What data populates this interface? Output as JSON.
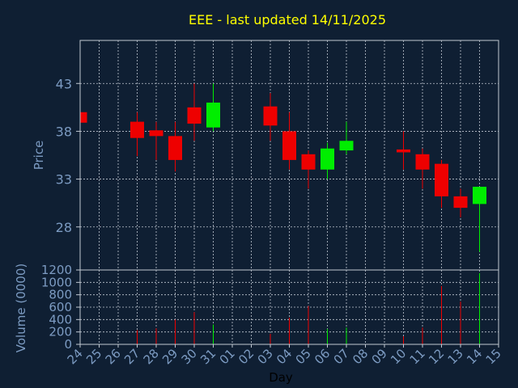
{
  "chart_data": {
    "type": "candlestick",
    "title": "EEE - last updated 14/11/2025",
    "price_panel": {
      "ylabel": "Price",
      "ylim": [
        23.5,
        47.5
      ],
      "yticks": [
        28,
        33,
        38,
        43
      ]
    },
    "volume_panel": {
      "ylabel": "Volume (0000)",
      "ylim": [
        0,
        1200
      ],
      "yticks": [
        0,
        200,
        400,
        600,
        800,
        1000,
        1200
      ]
    },
    "xlabel": "Day",
    "x_ticks": [
      "24",
      "25",
      "26",
      "27",
      "28",
      "29",
      "30",
      "31",
      "01",
      "02",
      "03",
      "04",
      "05",
      "06",
      "07",
      "08",
      "09",
      "10",
      "11",
      "12",
      "13",
      "14",
      "15"
    ],
    "candles": [
      {
        "day": "24",
        "open": 40.0,
        "high": 40.0,
        "low": 38.9,
        "close": 38.9,
        "volume": 0
      },
      {
        "day": "27",
        "open": 39.0,
        "high": 40.0,
        "low": 35.4,
        "close": 37.3,
        "volume": 230
      },
      {
        "day": "28",
        "open": 38.1,
        "high": 39.0,
        "low": 35.0,
        "close": 37.5,
        "volume": 260
      },
      {
        "day": "29",
        "open": 37.5,
        "high": 39.0,
        "low": 33.8,
        "close": 35.0,
        "volume": 400
      },
      {
        "day": "30",
        "open": 40.5,
        "high": 43.0,
        "low": 37.0,
        "close": 38.8,
        "volume": 520
      },
      {
        "day": "31",
        "open": 38.4,
        "high": 43.0,
        "low": 38.0,
        "close": 41.0,
        "volume": 320
      },
      {
        "day": "03",
        "open": 40.6,
        "high": 42.0,
        "low": 37.0,
        "close": 38.6,
        "volume": 170
      },
      {
        "day": "04",
        "open": 38.0,
        "high": 40.0,
        "low": 34.0,
        "close": 35.0,
        "volume": 430
      },
      {
        "day": "05",
        "open": 35.6,
        "high": 36.0,
        "low": 32.0,
        "close": 34.0,
        "volume": 620
      },
      {
        "day": "06",
        "open": 34.0,
        "high": 36.8,
        "low": 33.0,
        "close": 36.2,
        "volume": 250
      },
      {
        "day": "07",
        "open": 36.0,
        "high": 39.0,
        "low": 35.6,
        "close": 37.0,
        "volume": 270
      },
      {
        "day": "10",
        "open": 36.1,
        "high": 38.0,
        "low": 34.0,
        "close": 35.8,
        "volume": 130
      },
      {
        "day": "11",
        "open": 35.6,
        "high": 36.2,
        "low": 32.0,
        "close": 34.0,
        "volume": 270
      },
      {
        "day": "12",
        "open": 34.6,
        "high": 35.0,
        "low": 30.0,
        "close": 31.2,
        "volume": 940
      },
      {
        "day": "13",
        "open": 31.2,
        "high": 32.0,
        "low": 29.0,
        "close": 30.0,
        "volume": 690
      },
      {
        "day": "14",
        "open": 30.4,
        "high": 32.2,
        "low": 25.4,
        "close": 32.2,
        "volume": 1150
      }
    ],
    "colors": {
      "background": "#0f1f33",
      "up": "#00ee00",
      "down": "#ee0000",
      "title": "#ffff00",
      "axis_text": "#7c9bc2",
      "grid": "#c0c8d2",
      "frame": "#c0c8d2"
    },
    "grid": true
  }
}
